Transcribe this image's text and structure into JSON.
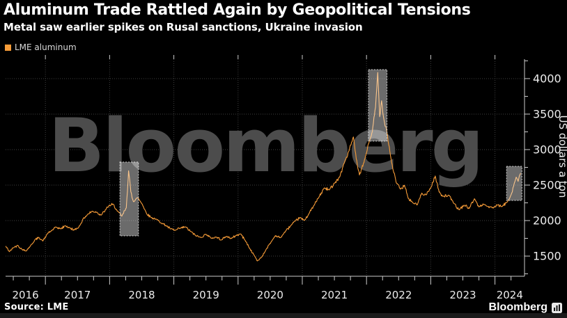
{
  "header": {
    "title": "Aluminum Trade Rattled Again by Geopolitical Tensions",
    "subtitle": "Metal saw earlier spikes on Rusal sanctions, Ukraine invasion"
  },
  "legend": {
    "items": [
      {
        "label": "LME aluminum",
        "color": "#f79c38"
      }
    ]
  },
  "footer": {
    "source": "Source: LME",
    "brand": "Bloomberg"
  },
  "watermark": "Bloomberg",
  "colors": {
    "background": "#000000",
    "accent_line": "#f79c38",
    "grid": "#3f3f3f",
    "axis": "#cdcdcd",
    "tick_label": "#ececec",
    "watermark": "#4c4c4c",
    "highlight_fill": "rgba(255,255,255,0.42)",
    "highlight_border": "rgba(255,255,255,0.75)"
  },
  "chart_data": {
    "type": "line",
    "title": "Aluminum Trade Rattled Again by Geopolitical Tensions",
    "subtitle": "Metal saw earlier spikes on Rusal sanctions, Ukraine invasion",
    "xlabel": "",
    "ylabel": "US dollars a ton",
    "legend_position": "top-left",
    "grid": "dotted-major",
    "x_domain": [
      2016.38,
      2024.46
    ],
    "y_domain": [
      1216,
      4274
    ],
    "x_labels": [
      2016,
      2017,
      2018,
      2019,
      2020,
      2021,
      2022,
      2023,
      2024
    ],
    "x_ticks_major": [
      2017,
      2018,
      2019,
      2020,
      2021,
      2022,
      2023,
      2024
    ],
    "x_tick_minor_step": 0.25,
    "y_ticks_major": [
      1500,
      2000,
      2500,
      3000,
      3500,
      4000
    ],
    "y_ticks_minor": [
      1250,
      1750,
      2250,
      2750,
      3250,
      3750,
      4250
    ],
    "highlights": [
      {
        "id": "rusal-sanctions-2018",
        "x": [
          2018.16,
          2018.45
        ],
        "y": [
          1784,
          2824
        ]
      },
      {
        "id": "ukraine-invasion-2022",
        "x": [
          2022.03,
          2022.32
        ],
        "y": [
          3118,
          4127
        ]
      },
      {
        "id": "new-tensions-2024",
        "x": [
          2024.18,
          2024.42
        ],
        "y": [
          2284,
          2765
        ]
      }
    ],
    "series": [
      {
        "name": "LME aluminum",
        "color": "#f79c38",
        "units": "US dollars a ton",
        "points": [
          [
            2016.38,
            1640
          ],
          [
            2016.44,
            1562
          ],
          [
            2016.5,
            1618
          ],
          [
            2016.57,
            1652
          ],
          [
            2016.64,
            1590
          ],
          [
            2016.7,
            1572
          ],
          [
            2016.77,
            1648
          ],
          [
            2016.84,
            1732
          ],
          [
            2016.9,
            1762
          ],
          [
            2016.96,
            1712
          ],
          [
            2017.03,
            1812
          ],
          [
            2017.1,
            1862
          ],
          [
            2017.17,
            1908
          ],
          [
            2017.24,
            1882
          ],
          [
            2017.31,
            1928
          ],
          [
            2017.38,
            1895
          ],
          [
            2017.45,
            1868
          ],
          [
            2017.52,
            1908
          ],
          [
            2017.59,
            2028
          ],
          [
            2017.66,
            2088
          ],
          [
            2017.73,
            2132
          ],
          [
            2017.8,
            2118
          ],
          [
            2017.87,
            2078
          ],
          [
            2017.94,
            2152
          ],
          [
            2017.99,
            2212
          ],
          [
            2018.06,
            2228
          ],
          [
            2018.12,
            2132
          ],
          [
            2018.19,
            2062
          ],
          [
            2018.26,
            2178
          ],
          [
            2018.295,
            2702
          ],
          [
            2018.33,
            2408
          ],
          [
            2018.37,
            2268
          ],
          [
            2018.44,
            2322
          ],
          [
            2018.51,
            2228
          ],
          [
            2018.58,
            2092
          ],
          [
            2018.65,
            2042
          ],
          [
            2018.72,
            2022
          ],
          [
            2018.8,
            1968
          ],
          [
            2018.88,
            1928
          ],
          [
            2018.95,
            1882
          ],
          [
            2019.02,
            1862
          ],
          [
            2019.1,
            1892
          ],
          [
            2019.18,
            1912
          ],
          [
            2019.26,
            1848
          ],
          [
            2019.34,
            1788
          ],
          [
            2019.42,
            1762
          ],
          [
            2019.5,
            1808
          ],
          [
            2019.58,
            1752
          ],
          [
            2019.66,
            1768
          ],
          [
            2019.74,
            1728
          ],
          [
            2019.82,
            1778
          ],
          [
            2019.9,
            1748
          ],
          [
            2019.97,
            1792
          ],
          [
            2020.04,
            1812
          ],
          [
            2020.11,
            1722
          ],
          [
            2020.18,
            1608
          ],
          [
            2020.24,
            1528
          ],
          [
            2020.3,
            1432
          ],
          [
            2020.37,
            1488
          ],
          [
            2020.44,
            1598
          ],
          [
            2020.51,
            1692
          ],
          [
            2020.58,
            1788
          ],
          [
            2020.66,
            1758
          ],
          [
            2020.74,
            1852
          ],
          [
            2020.82,
            1928
          ],
          [
            2020.89,
            1992
          ],
          [
            2020.96,
            2042
          ],
          [
            2021.03,
            2002
          ],
          [
            2021.1,
            2092
          ],
          [
            2021.18,
            2212
          ],
          [
            2021.26,
            2332
          ],
          [
            2021.34,
            2458
          ],
          [
            2021.42,
            2432
          ],
          [
            2021.5,
            2528
          ],
          [
            2021.58,
            2612
          ],
          [
            2021.66,
            2828
          ],
          [
            2021.73,
            2988
          ],
          [
            2021.795,
            3178
          ],
          [
            2021.84,
            2872
          ],
          [
            2021.89,
            2642
          ],
          [
            2021.96,
            2818
          ],
          [
            2022.03,
            3078
          ],
          [
            2022.09,
            3252
          ],
          [
            2022.14,
            3598
          ],
          [
            2022.175,
            4088
          ],
          [
            2022.205,
            3462
          ],
          [
            2022.235,
            3688
          ],
          [
            2022.27,
            3428
          ],
          [
            2022.31,
            3292
          ],
          [
            2022.39,
            2822
          ],
          [
            2022.46,
            2542
          ],
          [
            2022.53,
            2442
          ],
          [
            2022.59,
            2498
          ],
          [
            2022.65,
            2312
          ],
          [
            2022.72,
            2252
          ],
          [
            2022.79,
            2222
          ],
          [
            2022.86,
            2388
          ],
          [
            2022.93,
            2362
          ],
          [
            2023.0,
            2462
          ],
          [
            2023.07,
            2628
          ],
          [
            2023.13,
            2402
          ],
          [
            2023.2,
            2342
          ],
          [
            2023.28,
            2358
          ],
          [
            2023.36,
            2242
          ],
          [
            2023.44,
            2152
          ],
          [
            2023.52,
            2218
          ],
          [
            2023.6,
            2172
          ],
          [
            2023.68,
            2308
          ],
          [
            2023.75,
            2192
          ],
          [
            2023.82,
            2232
          ],
          [
            2023.89,
            2198
          ],
          [
            2023.96,
            2178
          ],
          [
            2024.04,
            2218
          ],
          [
            2024.11,
            2198
          ],
          [
            2024.18,
            2252
          ],
          [
            2024.24,
            2342
          ],
          [
            2024.29,
            2482
          ],
          [
            2024.33,
            2612
          ],
          [
            2024.36,
            2552
          ],
          [
            2024.4,
            2668
          ]
        ]
      }
    ]
  }
}
